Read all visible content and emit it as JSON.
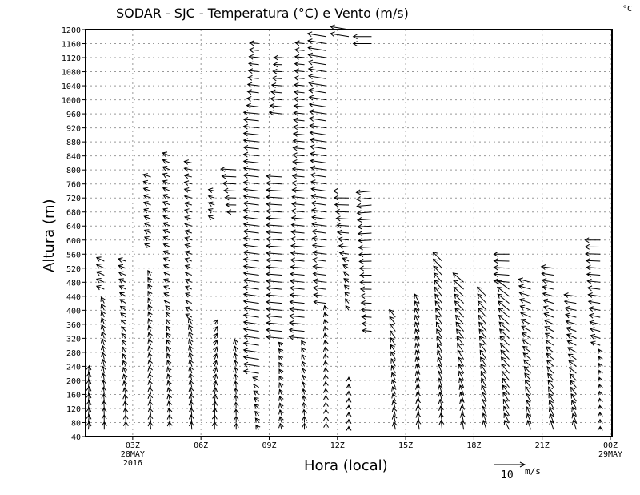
{
  "chart_data": {
    "type": "wind-vector-profile",
    "title": "SODAR - SJC - Temperatura (°C) e Vento (m/s)",
    "colorbar_unit": "°C",
    "xlabel": "Hora (local)",
    "ylabel": "Altura (m)",
    "xlim_hours": [
      0.93,
      24.07
    ],
    "ylim": [
      40,
      1200
    ],
    "grid": true,
    "yticks": [
      40,
      80,
      120,
      160,
      200,
      240,
      280,
      320,
      360,
      400,
      440,
      480,
      520,
      560,
      600,
      640,
      680,
      720,
      760,
      800,
      840,
      880,
      920,
      960,
      1000,
      1040,
      1080,
      1120,
      1160,
      1200
    ],
    "xticks": [
      {
        "hour": 3,
        "label": "03Z",
        "sub1": "28MAY",
        "sub2": "2016"
      },
      {
        "hour": 6,
        "label": "06Z"
      },
      {
        "hour": 9,
        "label": "09Z"
      },
      {
        "hour": 12,
        "label": "12Z"
      },
      {
        "hour": 15,
        "label": "15Z"
      },
      {
        "hour": 18,
        "label": "18Z"
      },
      {
        "hour": 21,
        "label": "21Z"
      },
      {
        "hour": 24,
        "label": "00Z",
        "sub1": "29MAY"
      }
    ],
    "reference_vector": {
      "value": 10,
      "label": "10",
      "unit": "m/s"
    },
    "level_step_m": 20,
    "profiles_note_units": "segments: [height_bottom_m, height_top_m, u_bottom, v_bottom, u_top, v_top] in m/s",
    "profiles": [
      {
        "hour": 1.05,
        "segments": [
          [
            60,
            220,
            0.3,
            2.5,
            0.3,
            2.5
          ]
        ]
      },
      {
        "hour": 1.75,
        "segments": [
          [
            60,
            420,
            0,
            2.5,
            -1,
            2
          ],
          [
            460,
            540,
            -2.5,
            1,
            -2.5,
            1.2
          ]
        ]
      },
      {
        "hour": 2.7,
        "segments": [
          [
            60,
            540,
            0,
            2.5,
            -2.5,
            0.8
          ]
        ]
      },
      {
        "hour": 3.8,
        "segments": [
          [
            60,
            500,
            -0.3,
            2.5,
            -1,
            1.5
          ],
          [
            580,
            780,
            -2,
            1,
            -2.5,
            0.8
          ]
        ]
      },
      {
        "hour": 4.65,
        "segments": [
          [
            60,
            400,
            -0.3,
            2.5,
            -1.5,
            1.5
          ],
          [
            420,
            840,
            -2,
            1,
            -2.5,
            1
          ]
        ]
      },
      {
        "hour": 5.6,
        "segments": [
          [
            60,
            360,
            -0.2,
            2.5,
            -1,
            2
          ],
          [
            380,
            820,
            -2,
            1,
            -2.5,
            0.5
          ]
        ]
      },
      {
        "hour": 6.6,
        "segments": [
          [
            60,
            360,
            0,
            2.5,
            1,
            1.5
          ],
          [
            660,
            740,
            -2,
            1,
            -2,
            0.5
          ]
        ]
      },
      {
        "hour": 7.55,
        "segments": [
          [
            60,
            300,
            0,
            2,
            -0.5,
            2
          ],
          [
            680,
            800,
            -3,
            0,
            -5,
            0.3
          ]
        ]
      },
      {
        "hour": 8.55,
        "segments": [
          [
            60,
            200,
            -1,
            1.5,
            -2,
            1
          ],
          [
            220,
            960,
            -5,
            0.8,
            -5,
            0.5
          ],
          [
            980,
            1160,
            -4,
            0.5,
            -3,
            0.3
          ]
        ]
      },
      {
        "hour": 9.55,
        "segments": [
          [
            60,
            300,
            -0.5,
            2,
            -1,
            1
          ],
          [
            320,
            780,
            -5,
            0.5,
            -5,
            0.3
          ],
          [
            960,
            1120,
            -4,
            0.5,
            -2.5,
            0
          ]
        ]
      },
      {
        "hour": 10.55,
        "segments": [
          [
            60,
            300,
            0,
            2,
            -1,
            1.5
          ],
          [
            320,
            1160,
            -5,
            0.5,
            -3,
            0.3
          ]
        ]
      },
      {
        "hour": 11.5,
        "segments": [
          [
            60,
            400,
            0,
            2,
            -0.5,
            1.5
          ],
          [
            420,
            1180,
            -4,
            0.5,
            -6,
            1
          ]
        ]
      },
      {
        "hour": 12.5,
        "segments": [
          [
            60,
            200,
            0,
            1,
            0,
            1
          ],
          [
            400,
            540,
            -1,
            1.5,
            -2,
            1
          ],
          [
            560,
            740,
            -3,
            0.5,
            -5,
            0
          ],
          [
            1180,
            1200,
            -6,
            1,
            -6,
            1
          ]
        ]
      },
      {
        "hour": 13.5,
        "segments": [
          [
            340,
            740,
            -3,
            0.3,
            -5,
            -0.5
          ],
          [
            1160,
            1180,
            -6,
            0,
            -6,
            0
          ]
        ]
      },
      {
        "hour": 14.55,
        "segments": [
          [
            60,
            380,
            -0.5,
            2.5,
            -2,
            2.5
          ]
        ]
      },
      {
        "hour": 15.6,
        "segments": [
          [
            60,
            420,
            -0.5,
            3,
            -1.5,
            3
          ]
        ]
      },
      {
        "hour": 16.6,
        "segments": [
          [
            60,
            540,
            -0.3,
            3,
            -3,
            3
          ]
        ]
      },
      {
        "hour": 17.55,
        "segments": [
          [
            60,
            480,
            -0.5,
            3,
            -3.5,
            3
          ]
        ]
      },
      {
        "hour": 18.55,
        "segments": [
          [
            60,
            440,
            -1,
            3,
            -3,
            3
          ]
        ]
      },
      {
        "hour": 19.55,
        "segments": [
          [
            60,
            460,
            -1.5,
            3,
            -4,
            3
          ],
          [
            480,
            560,
            -5,
            0.5,
            -5,
            0
          ]
        ]
      },
      {
        "hour": 20.5,
        "segments": [
          [
            60,
            480,
            -1,
            3,
            -4,
            1
          ]
        ]
      },
      {
        "hour": 21.5,
        "segments": [
          [
            60,
            520,
            -1,
            3,
            -4,
            0.5
          ]
        ]
      },
      {
        "hour": 22.5,
        "segments": [
          [
            60,
            440,
            -1,
            3,
            -4,
            0.5
          ]
        ]
      },
      {
        "hour": 23.55,
        "segments": [
          [
            60,
            280,
            0,
            1,
            -0.5,
            1
          ],
          [
            300,
            600,
            -3,
            1,
            -5,
            0
          ]
        ]
      }
    ]
  }
}
